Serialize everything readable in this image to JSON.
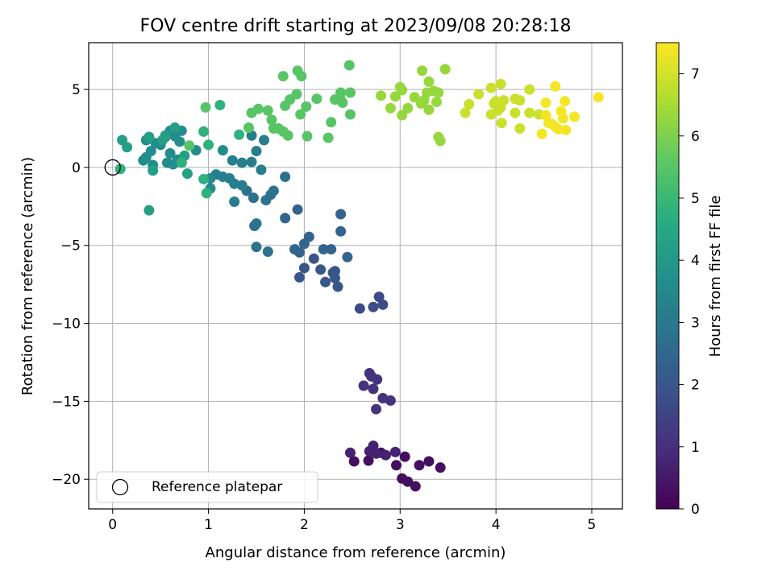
{
  "chart_data": {
    "type": "scatter",
    "title": "FOV centre drift starting at 2023/09/08 20:28:18",
    "xlabel": "Angular distance from reference (arcmin)",
    "ylabel": "Rotation from reference (arcmin)",
    "colorbar_label": "Hours from first FF file",
    "xlim": [
      -0.25,
      5.32
    ],
    "ylim": [
      -21.9,
      8.0
    ],
    "clim": [
      0,
      7.5
    ],
    "x_ticks": [
      0,
      1,
      2,
      3,
      4,
      5
    ],
    "x_tick_labels": [
      "0",
      "1",
      "2",
      "3",
      "4",
      "5"
    ],
    "y_ticks": [
      5,
      0,
      -5,
      -10,
      -15,
      -20
    ],
    "y_tick_labels": [
      "5",
      "0",
      "−5",
      "−10",
      "−15",
      "−20"
    ],
    "colorbar_ticks": [
      0,
      1,
      2,
      3,
      4,
      5,
      6,
      7
    ],
    "colorbar_tick_labels": [
      "0",
      "1",
      "2",
      "3",
      "4",
      "5",
      "6",
      "7"
    ],
    "colormap": "viridis",
    "grid": true,
    "legend": {
      "position": "lower-left",
      "entries": [
        "Reference platepar"
      ]
    },
    "reference_point": {
      "x": 0,
      "y": 0,
      "label": "Reference platepar"
    },
    "series": [
      {
        "color_value": 0.3,
        "points": [
          [
            3.02,
            -19.95
          ],
          [
            3.08,
            -20.15
          ],
          [
            3.16,
            -20.45
          ],
          [
            2.96,
            -19.1
          ],
          [
            3.2,
            -19.1
          ],
          [
            3.3,
            -18.85
          ],
          [
            3.42,
            -19.25
          ],
          [
            2.52,
            -18.85
          ],
          [
            2.67,
            -18.8
          ],
          [
            2.8,
            -18.3
          ],
          [
            3.05,
            -18.55
          ]
        ]
      },
      {
        "color_value": 0.7,
        "points": [
          [
            2.48,
            -18.3
          ],
          [
            2.68,
            -18.2
          ],
          [
            2.72,
            -17.85
          ],
          [
            2.75,
            -18.35
          ],
          [
            2.85,
            -18.45
          ],
          [
            2.95,
            -18.25
          ]
        ]
      },
      {
        "color_value": 1.1,
        "points": [
          [
            2.62,
            -14.0
          ],
          [
            2.68,
            -13.2
          ],
          [
            2.72,
            -14.2
          ],
          [
            2.76,
            -13.6
          ],
          [
            2.75,
            -15.5
          ],
          [
            2.82,
            -14.8
          ],
          [
            2.9,
            -14.95
          ],
          [
            2.7,
            -13.4
          ]
        ]
      },
      {
        "color_value": 1.7,
        "points": [
          [
            2.58,
            -9.05
          ],
          [
            2.72,
            -8.95
          ],
          [
            2.78,
            -8.3
          ],
          [
            2.82,
            -8.8
          ]
        ]
      },
      {
        "color_value": 2.0,
        "points": [
          [
            1.95,
            -7.05
          ],
          [
            2.0,
            -6.45
          ],
          [
            2.17,
            -6.55
          ],
          [
            2.22,
            -7.35
          ],
          [
            2.32,
            -7.1
          ],
          [
            2.3,
            -6.75
          ],
          [
            2.35,
            -7.65
          ],
          [
            2.32,
            -6.65
          ],
          [
            2.1,
            -5.85
          ]
        ]
      },
      {
        "color_value": 2.4,
        "points": [
          [
            1.9,
            -5.25
          ],
          [
            1.95,
            -5.45
          ],
          [
            2.0,
            -4.9
          ],
          [
            2.05,
            -4.45
          ],
          [
            2.2,
            -5.25
          ],
          [
            2.28,
            -5.25
          ],
          [
            2.45,
            -5.75
          ],
          [
            2.38,
            -4.1
          ],
          [
            2.38,
            -3.0
          ],
          [
            1.93,
            -2.7
          ],
          [
            1.8,
            -3.25
          ]
        ]
      },
      {
        "color_value": 2.8,
        "points": [
          [
            1.5,
            -3.6
          ],
          [
            1.48,
            -3.75
          ],
          [
            1.5,
            -5.1
          ],
          [
            1.62,
            -5.4
          ],
          [
            1.68,
            -1.5
          ],
          [
            1.65,
            -1.75
          ],
          [
            1.8,
            -0.6
          ],
          [
            1.4,
            -1.5
          ],
          [
            1.47,
            -1.95
          ],
          [
            1.6,
            -2.1
          ]
        ]
      },
      {
        "color_value": 3.2,
        "points": [
          [
            1.15,
            -0.6
          ],
          [
            1.08,
            -0.45
          ],
          [
            1.22,
            -0.7
          ],
          [
            1.27,
            -1.05
          ],
          [
            1.35,
            -1.15
          ],
          [
            1.27,
            -2.2
          ],
          [
            1.45,
            0.35
          ],
          [
            1.55,
            -0.15
          ],
          [
            1.25,
            0.45
          ],
          [
            1.35,
            0.3
          ],
          [
            1.5,
            1.05
          ],
          [
            1.58,
            1.75
          ],
          [
            1.45,
            2.05
          ]
        ]
      },
      {
        "color_value": 3.6,
        "points": [
          [
            0.32,
            0.45
          ],
          [
            0.4,
            1.05
          ],
          [
            0.5,
            1.45
          ],
          [
            0.57,
            0.3
          ],
          [
            0.63,
            0.2
          ],
          [
            0.6,
            0.9
          ],
          [
            0.68,
            0.5
          ],
          [
            0.87,
            1.1
          ],
          [
            1.15,
            1.1
          ],
          [
            1.02,
            -0.7
          ],
          [
            1.02,
            -1.35
          ],
          [
            0.35,
            0.65
          ],
          [
            0.42,
            0.15
          ],
          [
            0.7,
            1.65
          ],
          [
            0.72,
            2.35
          ],
          [
            0.6,
            2.35
          ],
          [
            0.55,
            1.95
          ],
          [
            0.35,
            1.75
          ],
          [
            0.45,
            1.55
          ],
          [
            0.65,
            2.0
          ]
        ]
      },
      {
        "color_value": 4.2,
        "points": [
          [
            0.1,
            1.75
          ],
          [
            0.15,
            1.3
          ],
          [
            0.38,
            1.95
          ],
          [
            0.42,
            -0.2
          ],
          [
            0.52,
            1.75
          ],
          [
            0.55,
            2.05
          ],
          [
            0.65,
            2.55
          ],
          [
            0.75,
            0.75
          ],
          [
            0.78,
            -0.4
          ],
          [
            0.38,
            -2.75
          ]
        ]
      },
      {
        "color_value": 4.8,
        "points": [
          [
            0.08,
            -0.1
          ],
          [
            0.72,
            0.3
          ],
          [
            0.95,
            -0.75
          ],
          [
            0.98,
            -1.65
          ],
          [
            1.0,
            1.45
          ],
          [
            1.32,
            2.1
          ],
          [
            0.95,
            2.3
          ],
          [
            1.12,
            4.0
          ]
        ]
      },
      {
        "color_value": 5.5,
        "points": [
          [
            0.8,
            1.4
          ],
          [
            0.97,
            3.85
          ],
          [
            1.42,
            2.55
          ],
          [
            1.45,
            3.5
          ],
          [
            1.52,
            3.75
          ],
          [
            1.62,
            3.65
          ],
          [
            1.68,
            2.5
          ],
          [
            1.73,
            2.5
          ],
          [
            1.78,
            2.3
          ],
          [
            1.83,
            2.05
          ],
          [
            1.8,
            3.95
          ],
          [
            1.85,
            4.35
          ],
          [
            1.92,
            4.7
          ],
          [
            1.96,
            3.4
          ],
          [
            2.02,
            3.9
          ],
          [
            2.03,
            2.0
          ],
          [
            2.13,
            4.4
          ],
          [
            2.25,
            1.9
          ],
          [
            2.28,
            2.9
          ],
          [
            2.32,
            4.35
          ],
          [
            2.38,
            4.35
          ],
          [
            2.48,
            3.4
          ],
          [
            1.78,
            5.85
          ],
          [
            1.93,
            6.2
          ],
          [
            1.97,
            5.85
          ],
          [
            2.47,
            6.55
          ],
          [
            2.38,
            4.8
          ],
          [
            2.48,
            4.8
          ],
          [
            2.4,
            4.15
          ],
          [
            1.66,
            3.05
          ]
        ]
      },
      {
        "color_value": 6.3,
        "points": [
          [
            2.8,
            4.6
          ],
          [
            2.9,
            3.8
          ],
          [
            2.95,
            4.55
          ],
          [
            3.0,
            5.15
          ],
          [
            3.02,
            3.35
          ],
          [
            3.02,
            4.95
          ],
          [
            3.08,
            3.8
          ],
          [
            3.15,
            4.5
          ],
          [
            3.22,
            4.1
          ],
          [
            3.25,
            4.3
          ],
          [
            3.3,
            5.5
          ],
          [
            3.3,
            3.7
          ],
          [
            3.35,
            4.9
          ],
          [
            3.38,
            4.2
          ],
          [
            3.4,
            4.8
          ],
          [
            3.4,
            1.95
          ],
          [
            3.42,
            1.7
          ],
          [
            3.47,
            6.3
          ],
          [
            3.23,
            6.2
          ],
          [
            3.28,
            4.8
          ]
        ]
      },
      {
        "color_value": 6.9,
        "points": [
          [
            3.68,
            3.5
          ],
          [
            3.72,
            4.05
          ],
          [
            3.82,
            4.7
          ],
          [
            3.95,
            5.1
          ],
          [
            3.95,
            3.4
          ],
          [
            3.98,
            4.1
          ],
          [
            4.0,
            4.25
          ],
          [
            4.02,
            3.65
          ],
          [
            4.05,
            3.85
          ],
          [
            4.05,
            5.35
          ],
          [
            4.06,
            2.85
          ],
          [
            4.08,
            4.3
          ],
          [
            4.2,
            3.5
          ],
          [
            4.2,
            4.4
          ],
          [
            4.25,
            4.3
          ],
          [
            4.25,
            2.5
          ],
          [
            4.35,
            3.5
          ],
          [
            4.35,
            5.0
          ],
          [
            4.45,
            3.4
          ]
        ]
      },
      {
        "color_value": 7.4,
        "points": [
          [
            4.48,
            2.15
          ],
          [
            4.52,
            3.35
          ],
          [
            4.52,
            4.15
          ],
          [
            4.58,
            2.8
          ],
          [
            4.62,
            2.6
          ],
          [
            4.62,
            5.2
          ],
          [
            4.65,
            2.45
          ],
          [
            4.68,
            3.6
          ],
          [
            4.7,
            3.15
          ],
          [
            4.72,
            4.25
          ],
          [
            4.73,
            2.4
          ],
          [
            4.82,
            3.25
          ],
          [
            4.55,
            2.85
          ],
          [
            5.07,
            4.5
          ]
        ]
      }
    ]
  }
}
